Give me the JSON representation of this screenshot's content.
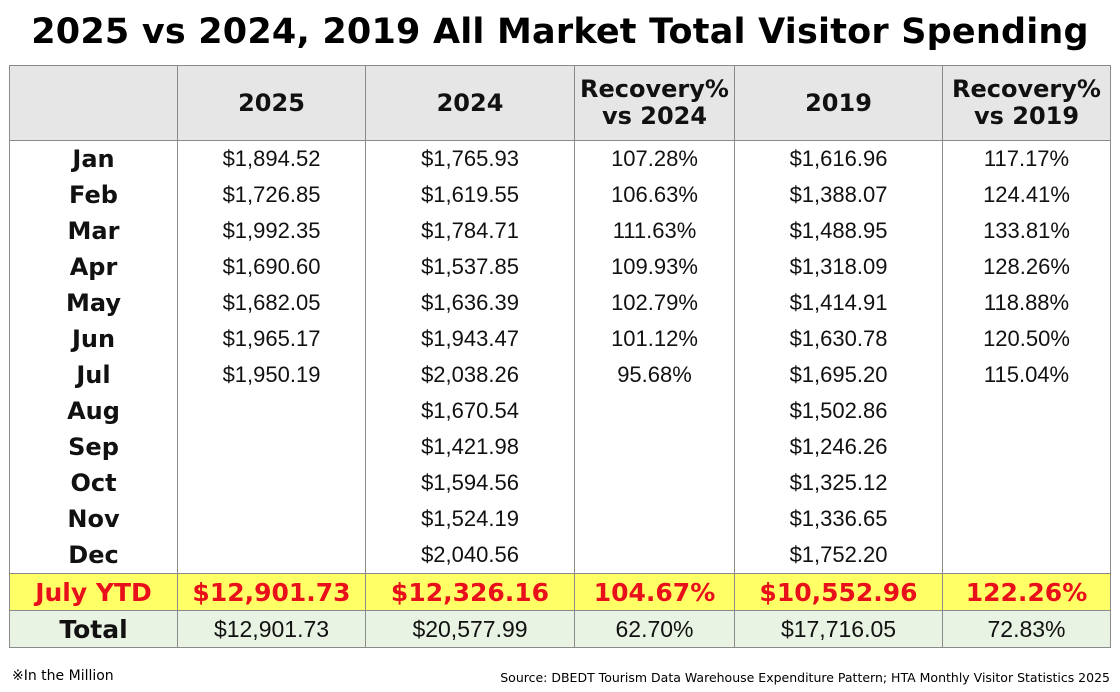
{
  "title": "2025 vs 2024, 2019 All Market Total Visitor Spending",
  "chart_data": {
    "type": "table",
    "title": "2025 vs 2024, 2019 All Market Total Visitor Spending",
    "columns": [
      "",
      "2025",
      "2024",
      "Recovery%\nvs 2024",
      "2019",
      "Recovery%\nvs 2019"
    ],
    "rows": [
      {
        "label": "Jan",
        "cells": [
          "$1,894.52",
          "$1,765.93",
          "107.28%",
          "$1,616.96",
          "117.17%"
        ]
      },
      {
        "label": "Feb",
        "cells": [
          "$1,726.85",
          "$1,619.55",
          "106.63%",
          "$1,388.07",
          "124.41%"
        ]
      },
      {
        "label": "Mar",
        "cells": [
          "$1,992.35",
          "$1,784.71",
          "111.63%",
          "$1,488.95",
          "133.81%"
        ]
      },
      {
        "label": "Apr",
        "cells": [
          "$1,690.60",
          "$1,537.85",
          "109.93%",
          "$1,318.09",
          "128.26%"
        ]
      },
      {
        "label": "May",
        "cells": [
          "$1,682.05",
          "$1,636.39",
          "102.79%",
          "$1,414.91",
          "118.88%"
        ]
      },
      {
        "label": "Jun",
        "cells": [
          "$1,965.17",
          "$1,943.47",
          "101.12%",
          "$1,630.78",
          "120.50%"
        ]
      },
      {
        "label": "Jul",
        "cells": [
          "$1,950.19",
          "$2,038.26",
          "95.68%",
          "$1,695.20",
          "115.04%"
        ]
      },
      {
        "label": "Aug",
        "cells": [
          "",
          "$1,670.54",
          "",
          "$1,502.86",
          ""
        ]
      },
      {
        "label": "Sep",
        "cells": [
          "",
          "$1,421.98",
          "",
          "$1,246.26",
          ""
        ]
      },
      {
        "label": "Oct",
        "cells": [
          "",
          "$1,594.56",
          "",
          "$1,325.12",
          ""
        ]
      },
      {
        "label": "Nov",
        "cells": [
          "",
          "$1,524.19",
          "",
          "$1,336.65",
          ""
        ]
      },
      {
        "label": "Dec",
        "cells": [
          "",
          "$2,040.56",
          "",
          "$1,752.20",
          ""
        ]
      }
    ],
    "ytd": {
      "label": "July YTD",
      "cells": [
        "$12,901.73",
        "$12,326.16",
        "104.67%",
        "$10,552.96",
        "122.26%"
      ],
      "color": "#e8101a",
      "background": "#ffff66"
    },
    "total": {
      "label": "Total",
      "cells": [
        "$12,901.73",
        "$20,577.99",
        "62.70%",
        "$17,716.05",
        "72.83%"
      ],
      "background": "#e9f3e3"
    }
  },
  "footnote": "※In the Million",
  "source": "Source: DBEDT Tourism Data Warehouse Expenditure Pattern; HTA Monthly Visitor Statistics 2025"
}
